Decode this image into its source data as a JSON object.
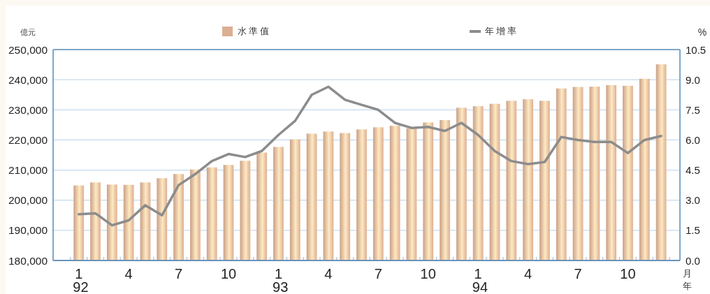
{
  "chart_data": {
    "type": "bar",
    "categories": [
      "1\n92",
      null,
      null,
      "4",
      null,
      null,
      "7",
      null,
      null,
      "10",
      null,
      null,
      "1\n93",
      null,
      null,
      "4",
      null,
      null,
      "7",
      null,
      null,
      "10",
      null,
      null,
      "1\n94",
      null,
      null,
      "4",
      null,
      null,
      "7",
      null,
      null,
      "10",
      null,
      null
    ],
    "series": [
      {
        "name": "水準值",
        "color": "#dcaf92",
        "values": [
          204900,
          205900,
          205200,
          205100,
          205900,
          207300,
          208700,
          210200,
          210900,
          211700,
          213100,
          215800,
          217700,
          220200,
          222100,
          222800,
          222300,
          223500,
          224200,
          224700,
          223900,
          225800,
          226600,
          230700,
          231200,
          232000,
          233000,
          233500,
          233000,
          237100,
          237600,
          237700,
          238200,
          238000,
          240300,
          245100
        ]
      },
      {
        "name": "年增率",
        "type": "line",
        "axis": "y2",
        "color": "#8c8c8c",
        "values": [
          2.3,
          2.35,
          1.75,
          2.0,
          2.75,
          2.25,
          3.75,
          4.3,
          4.95,
          5.3,
          5.15,
          5.45,
          6.25,
          6.95,
          8.25,
          8.65,
          8.0,
          7.75,
          7.5,
          6.85,
          6.6,
          6.65,
          6.45,
          6.85,
          6.25,
          5.45,
          4.95,
          4.8,
          4.9,
          6.15,
          6.0,
          5.9,
          5.9,
          5.35,
          6.0,
          6.2
        ]
      }
    ],
    "ylim": [
      180000,
      250000
    ],
    "yticks": [
      {
        "value": 180000,
        "label": "180,000"
      },
      {
        "value": 190000,
        "label": "190,000"
      },
      {
        "value": 200000,
        "label": "200,000"
      },
      {
        "value": 210000,
        "label": "210,000"
      },
      {
        "value": 220000,
        "label": "220,000"
      },
      {
        "value": 230000,
        "label": "230,000"
      },
      {
        "value": 240000,
        "label": "240,000"
      },
      {
        "value": 250000,
        "label": "250,000"
      }
    ],
    "y2lim": [
      0,
      10.5
    ],
    "y2ticks": [
      {
        "value": 0,
        "label": "0.0"
      },
      {
        "value": 1.5,
        "label": "1.5"
      },
      {
        "value": 3,
        "label": "3.0"
      },
      {
        "value": 4.5,
        "label": "4.5"
      },
      {
        "value": 6,
        "label": "6.0"
      },
      {
        "value": 7.5,
        "label": "7.5"
      },
      {
        "value": 9,
        "label": "9.0"
      },
      10.5
    ],
    "ylabel": "億元",
    "y2label": "%",
    "xlabel": "月年",
    "grid": "y",
    "legend": "top"
  }
}
